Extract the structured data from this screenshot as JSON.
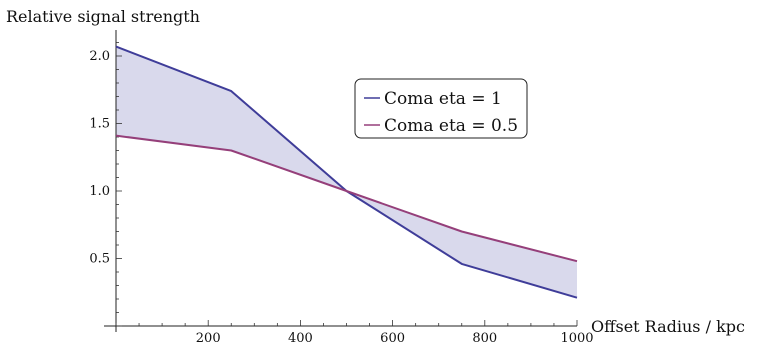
{
  "chart_data": {
    "type": "line",
    "title": "",
    "xlabel": "Offset Radius / kpc",
    "ylabel": "Relative signal strength",
    "xlim": [
      0,
      1000
    ],
    "ylim": [
      0,
      2.1
    ],
    "x_ticks": [
      200,
      400,
      600,
      800,
      1000
    ],
    "x_tick_labels": [
      "200",
      "400",
      "600",
      "800",
      "1000"
    ],
    "y_ticks": [
      0.5,
      1.0,
      1.5,
      2.0
    ],
    "y_tick_labels": [
      "0.5",
      "1.0",
      "1.5",
      "2.0"
    ],
    "grid": false,
    "legend_position": "upper-right",
    "fill_between_series": true,
    "fill_color": "#d9d9ec",
    "series": [
      {
        "name": "Coma eta = 1",
        "color": "#3f3d99",
        "x": [
          0,
          250,
          500,
          750,
          1000
        ],
        "y": [
          2.07,
          1.74,
          1.0,
          0.46,
          0.21
        ]
      },
      {
        "name": "Coma eta = 0.5",
        "color": "#953f7a",
        "x": [
          0,
          250,
          500,
          750,
          1000
        ],
        "y": [
          1.41,
          1.3,
          1.0,
          0.7,
          0.48
        ]
      }
    ]
  }
}
